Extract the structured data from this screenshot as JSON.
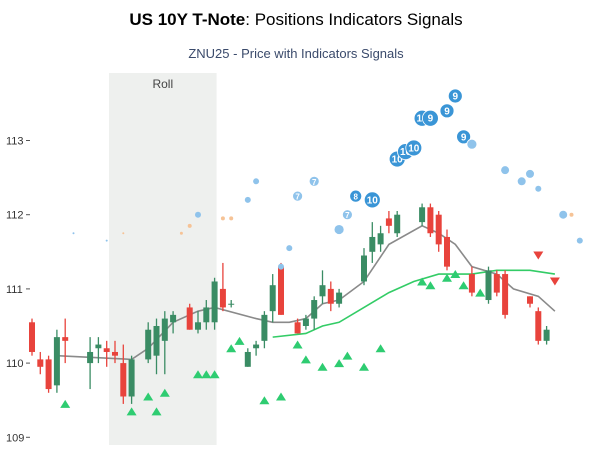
{
  "title_bold": "US 10Y T-Note",
  "title_rest": ": Positions Indicators Signals",
  "subtitle": "ZNU25 - Price with Indicators Signals",
  "roll_label": "Roll",
  "colors": {
    "up": "#3a8c64",
    "down": "#e8433c",
    "ma_long": "#8a8a8a",
    "ma_short": "#33cc66",
    "buy_signal": "#2ecc71",
    "sell_signal": "#e8433c",
    "bubble_strong": "#3a95d6",
    "bubble_light": "#8fc3eb",
    "bubble_orange": "#f6c396",
    "roll_band": "#eef0ee"
  },
  "chart_data": {
    "type": "candlestick",
    "ylim": [
      109,
      114
    ],
    "yticks": [
      109,
      110,
      111,
      112,
      113
    ],
    "roll_span": [
      10,
      22
    ],
    "candles": [
      {
        "o": 110.55,
        "h": 110.6,
        "l": 110.1,
        "c": 110.15
      },
      {
        "o": 110.05,
        "h": 110.15,
        "l": 109.85,
        "c": 109.95
      },
      {
        "o": 110.05,
        "h": 110.1,
        "l": 109.6,
        "c": 109.65
      },
      {
        "o": 109.7,
        "h": 110.45,
        "l": 109.6,
        "c": 110.35
      },
      {
        "o": 110.35,
        "h": 110.6,
        "l": 110.0,
        "c": 110.3
      },
      {
        "o": null,
        "h": null,
        "l": null,
        "c": null
      },
      {
        "o": null,
        "h": null,
        "l": null,
        "c": null
      },
      {
        "o": 110.0,
        "h": 110.35,
        "l": 109.65,
        "c": 110.15
      },
      {
        "o": 110.2,
        "h": 110.35,
        "l": 110.0,
        "c": 110.25
      },
      {
        "o": 110.2,
        "h": 110.3,
        "l": 109.95,
        "c": 110.15
      },
      {
        "o": 110.15,
        "h": 110.3,
        "l": 110.0,
        "c": 110.1
      },
      {
        "o": 110.0,
        "h": 110.25,
        "l": 109.45,
        "c": 109.55
      },
      {
        "o": 109.55,
        "h": 110.1,
        "l": 109.45,
        "c": 110.05
      },
      {
        "o": null,
        "h": null,
        "l": null,
        "c": null
      },
      {
        "o": 110.05,
        "h": 110.55,
        "l": 110.0,
        "c": 110.45
      },
      {
        "o": 110.1,
        "h": 110.6,
        "l": 109.85,
        "c": 110.5
      },
      {
        "o": 110.3,
        "h": 110.7,
        "l": 109.85,
        "c": 110.6
      },
      {
        "o": 110.55,
        "h": 110.7,
        "l": 110.4,
        "c": 110.65
      },
      {
        "o": null,
        "h": null,
        "l": null,
        "c": null
      },
      {
        "o": 110.75,
        "h": 110.8,
        "l": 110.45,
        "c": 110.45
      },
      {
        "o": 110.45,
        "h": 110.7,
        "l": 110.4,
        "c": 110.55
      },
      {
        "o": 110.55,
        "h": 110.85,
        "l": 110.45,
        "c": 110.75
      },
      {
        "o": 110.55,
        "h": 111.15,
        "l": 110.45,
        "c": 111.1
      },
      {
        "o": 111.0,
        "h": 111.35,
        "l": 110.7,
        "c": 110.75
      },
      {
        "o": 110.8,
        "h": 110.85,
        "l": 110.75,
        "c": 110.8
      },
      {
        "o": null,
        "h": null,
        "l": null,
        "c": null
      },
      {
        "o": 109.95,
        "h": 110.2,
        "l": 109.95,
        "c": 110.15
      },
      {
        "o": 110.2,
        "h": 110.3,
        "l": 110.1,
        "c": 110.25
      },
      {
        "o": 110.3,
        "h": 110.7,
        "l": 110.2,
        "c": 110.65
      },
      {
        "o": 110.7,
        "h": 111.2,
        "l": 110.55,
        "c": 111.05
      },
      {
        "o": 111.3,
        "h": 111.35,
        "l": 110.65,
        "c": 110.65
      },
      {
        "o": null,
        "h": null,
        "l": null,
        "c": null
      },
      {
        "o": 110.55,
        "h": 110.6,
        "l": 110.4,
        "c": 110.4
      },
      {
        "o": 110.5,
        "h": 110.65,
        "l": 110.45,
        "c": 110.6
      },
      {
        "o": 110.6,
        "h": 110.9,
        "l": 110.45,
        "c": 110.85
      },
      {
        "o": 110.9,
        "h": 111.25,
        "l": 110.8,
        "c": 111.05
      },
      {
        "o": 111.0,
        "h": 111.1,
        "l": 110.7,
        "c": 110.8
      },
      {
        "o": 110.8,
        "h": 111.0,
        "l": 110.75,
        "c": 110.95
      },
      {
        "o": null,
        "h": null,
        "l": null,
        "c": null
      },
      {
        "o": null,
        "h": null,
        "l": null,
        "c": null
      },
      {
        "o": 111.1,
        "h": 111.55,
        "l": 111.05,
        "c": 111.45
      },
      {
        "o": 111.5,
        "h": 111.9,
        "l": 111.35,
        "c": 111.7
      },
      {
        "o": 111.6,
        "h": 111.85,
        "l": 111.5,
        "c": 111.75
      },
      {
        "o": 111.95,
        "h": 112.05,
        "l": 111.75,
        "c": 111.85
      },
      {
        "o": 111.75,
        "h": 112.05,
        "l": 111.7,
        "c": 112.0
      },
      {
        "o": null,
        "h": null,
        "l": null,
        "c": null
      },
      {
        "o": null,
        "h": null,
        "l": null,
        "c": null
      },
      {
        "o": 111.9,
        "h": 112.15,
        "l": 111.85,
        "c": 112.1
      },
      {
        "o": 112.1,
        "h": 112.15,
        "l": 111.7,
        "c": 111.75
      },
      {
        "o": 112.0,
        "h": 112.05,
        "l": 111.5,
        "c": 111.6
      },
      {
        "o": 111.7,
        "h": 111.8,
        "l": 111.25,
        "c": 111.3
      },
      {
        "o": null,
        "h": null,
        "l": null,
        "c": null
      },
      {
        "o": null,
        "h": null,
        "l": null,
        "c": null
      },
      {
        "o": 111.2,
        "h": 111.3,
        "l": 110.9,
        "c": 110.95
      },
      {
        "o": null,
        "h": null,
        "l": null,
        "c": null
      },
      {
        "o": 110.85,
        "h": 111.3,
        "l": 110.8,
        "c": 111.25
      },
      {
        "o": 111.2,
        "h": 111.25,
        "l": 110.9,
        "c": 110.95
      },
      {
        "o": 111.2,
        "h": 111.25,
        "l": 110.6,
        "c": 110.65
      },
      {
        "o": null,
        "h": null,
        "l": null,
        "c": null
      },
      {
        "o": null,
        "h": null,
        "l": null,
        "c": null
      },
      {
        "o": 110.9,
        "h": 110.9,
        "l": 110.75,
        "c": 110.8
      },
      {
        "o": 110.7,
        "h": 110.75,
        "l": 110.25,
        "c": 110.3
      },
      {
        "o": 110.3,
        "h": 110.5,
        "l": 110.25,
        "c": 110.45
      }
    ],
    "ma_long": [
      [
        3,
        110.1
      ],
      [
        12,
        110.05
      ],
      [
        14,
        110.2
      ],
      [
        17,
        110.55
      ],
      [
        20,
        110.7
      ],
      [
        22,
        110.75
      ],
      [
        27,
        110.6
      ],
      [
        29,
        110.55
      ],
      [
        31,
        110.55
      ],
      [
        33,
        110.6
      ],
      [
        35,
        110.8
      ],
      [
        37,
        110.85
      ],
      [
        40,
        111.1
      ],
      [
        43,
        111.6
      ],
      [
        47,
        111.85
      ],
      [
        49,
        111.75
      ],
      [
        51,
        111.6
      ],
      [
        53,
        111.3
      ],
      [
        56,
        111.2
      ],
      [
        58,
        111.0
      ],
      [
        61,
        110.9
      ],
      [
        63,
        110.7
      ]
    ],
    "ma_short": [
      [
        29,
        110.35
      ],
      [
        33,
        110.4
      ],
      [
        35,
        110.5
      ],
      [
        37,
        110.55
      ],
      [
        40,
        110.75
      ],
      [
        43,
        110.95
      ],
      [
        46,
        111.1
      ],
      [
        49,
        111.2
      ],
      [
        53,
        111.2
      ],
      [
        56,
        111.25
      ],
      [
        60,
        111.25
      ],
      [
        63,
        111.2
      ]
    ],
    "buy_signals": [
      [
        4,
        109.45
      ],
      [
        12,
        109.35
      ],
      [
        14,
        109.55
      ],
      [
        15,
        109.35
      ],
      [
        16,
        109.6
      ],
      [
        20,
        109.85
      ],
      [
        21,
        109.85
      ],
      [
        22,
        109.85
      ],
      [
        24,
        110.2
      ],
      [
        25,
        110.3
      ],
      [
        28,
        109.5
      ],
      [
        30,
        109.55
      ],
      [
        32,
        110.25
      ],
      [
        33,
        110.05
      ],
      [
        35,
        109.95
      ],
      [
        37,
        110.0
      ],
      [
        38,
        110.1
      ],
      [
        40,
        109.95
      ],
      [
        42,
        110.2
      ],
      [
        47,
        111.1
      ],
      [
        48,
        111.05
      ],
      [
        50,
        111.15
      ],
      [
        51,
        111.2
      ],
      [
        52,
        111.05
      ],
      [
        54,
        110.95
      ]
    ],
    "sell_signals": [
      [
        61,
        111.45
      ],
      [
        63,
        111.1
      ]
    ],
    "bubbles": [
      {
        "x": 5,
        "y": 111.75,
        "r": 1,
        "color": "bubble_light",
        "label": ""
      },
      {
        "x": 9,
        "y": 111.65,
        "r": 1,
        "color": "bubble_light",
        "label": ""
      },
      {
        "x": 11,
        "y": 111.75,
        "r": 1,
        "color": "bubble_orange",
        "label": ""
      },
      {
        "x": 18,
        "y": 111.75,
        "r": 1.5,
        "color": "bubble_orange",
        "label": ""
      },
      {
        "x": 19,
        "y": 111.85,
        "r": 2,
        "color": "bubble_orange",
        "label": ""
      },
      {
        "x": 20,
        "y": 112.0,
        "r": 3,
        "color": "bubble_light",
        "label": ""
      },
      {
        "x": 23,
        "y": 111.95,
        "r": 2,
        "color": "bubble_orange",
        "label": ""
      },
      {
        "x": 24,
        "y": 111.95,
        "r": 2,
        "color": "bubble_orange",
        "label": ""
      },
      {
        "x": 26,
        "y": 112.2,
        "r": 3,
        "color": "bubble_light",
        "label": ""
      },
      {
        "x": 27,
        "y": 112.45,
        "r": 3,
        "color": "bubble_light",
        "label": ""
      },
      {
        "x": 30,
        "y": 111.3,
        "r": 3,
        "color": "bubble_light",
        "label": ""
      },
      {
        "x": 31,
        "y": 111.55,
        "r": 3,
        "color": "bubble_light",
        "label": ""
      },
      {
        "x": 32,
        "y": 112.25,
        "r": 5,
        "color": "bubble_light",
        "label": "7"
      },
      {
        "x": 34,
        "y": 112.45,
        "r": 5,
        "color": "bubble_light",
        "label": "7"
      },
      {
        "x": 37,
        "y": 111.8,
        "r": 5,
        "color": "bubble_light",
        "label": ""
      },
      {
        "x": 38,
        "y": 112.0,
        "r": 5,
        "color": "bubble_light",
        "label": "7"
      },
      {
        "x": 39,
        "y": 112.25,
        "r": 6,
        "color": "bubble_strong",
        "label": "8"
      },
      {
        "x": 41,
        "y": 112.2,
        "r": 8,
        "color": "bubble_strong",
        "label": "10"
      },
      {
        "x": 44,
        "y": 112.75,
        "r": 8,
        "color": "bubble_strong",
        "label": "10"
      },
      {
        "x": 45,
        "y": 112.85,
        "r": 8,
        "color": "bubble_strong",
        "label": "10"
      },
      {
        "x": 46,
        "y": 112.9,
        "r": 8,
        "color": "bubble_strong",
        "label": "10"
      },
      {
        "x": 47,
        "y": 113.3,
        "r": 8,
        "color": "bubble_strong",
        "label": "10"
      },
      {
        "x": 48,
        "y": 113.3,
        "r": 8,
        "color": "bubble_strong",
        "label": "9"
      },
      {
        "x": 50,
        "y": 113.4,
        "r": 7,
        "color": "bubble_strong",
        "label": "9"
      },
      {
        "x": 51,
        "y": 113.6,
        "r": 7,
        "color": "bubble_strong",
        "label": "9"
      },
      {
        "x": 52,
        "y": 113.05,
        "r": 7,
        "color": "bubble_strong",
        "label": "9"
      },
      {
        "x": 53,
        "y": 112.95,
        "r": 5,
        "color": "bubble_light",
        "label": ""
      },
      {
        "x": 57,
        "y": 112.6,
        "r": 4,
        "color": "bubble_light",
        "label": ""
      },
      {
        "x": 59,
        "y": 112.45,
        "r": 4,
        "color": "bubble_light",
        "label": ""
      },
      {
        "x": 60,
        "y": 112.55,
        "r": 4,
        "color": "bubble_light",
        "label": ""
      },
      {
        "x": 61,
        "y": 112.35,
        "r": 3,
        "color": "bubble_light",
        "label": ""
      },
      {
        "x": 64,
        "y": 112.0,
        "r": 4,
        "color": "bubble_light",
        "label": ""
      },
      {
        "x": 65,
        "y": 112.0,
        "r": 2,
        "color": "bubble_orange",
        "label": ""
      },
      {
        "x": 66,
        "y": 111.65,
        "r": 3,
        "color": "bubble_light",
        "label": ""
      }
    ]
  }
}
